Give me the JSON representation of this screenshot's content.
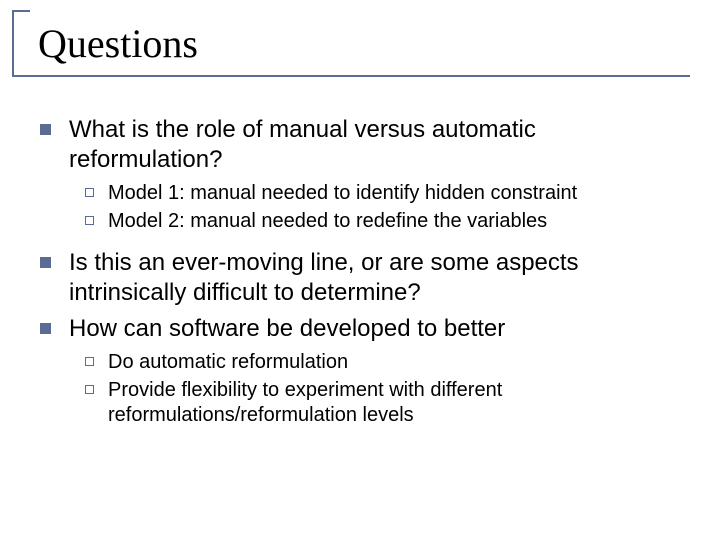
{
  "colors": {
    "accent": "#5a6b94",
    "text": "#000000",
    "background": "#ffffff"
  },
  "title": "Questions",
  "items": [
    {
      "text": "What is the role of manual versus automatic reformulation?",
      "sub": [
        {
          "text": "Model 1: manual needed to identify hidden constraint"
        },
        {
          "text": "Model 2: manual needed to redefine the variables"
        }
      ]
    },
    {
      "text": "Is this an ever-moving line, or are some aspects intrinsically difficult to determine?",
      "sub": []
    },
    {
      "text": "How can software be developed to better",
      "sub": [
        {
          "text": "Do automatic reformulation"
        },
        {
          "text": "Provide flexibility to experiment with different reformulations/reformulation levels"
        }
      ]
    }
  ]
}
